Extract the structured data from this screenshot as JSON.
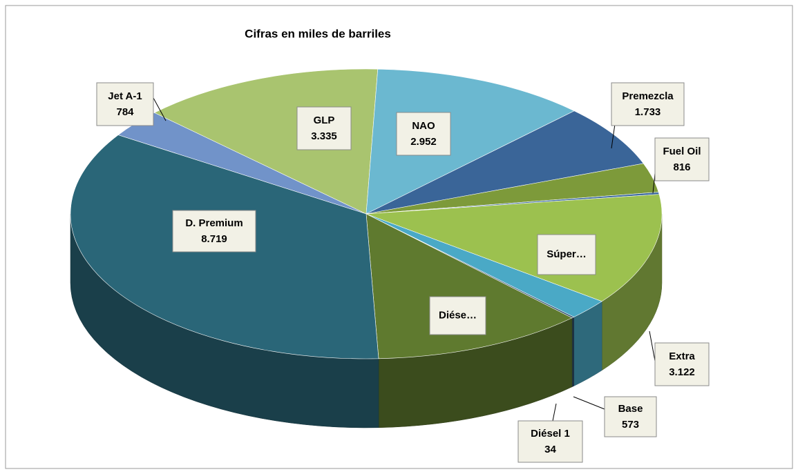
{
  "chart_data": {
    "type": "pie3d",
    "title": "Cifras en miles de barriles",
    "categories": [
      "Jet A-1",
      "GLP",
      "NAO",
      "Premezcla",
      "Fuel Oil",
      "Súper…",
      "Extra",
      "Base",
      "Diésel 1",
      "Diése…",
      "D. Premium"
    ],
    "values": [
      784,
      3335,
      2952,
      1733,
      816,
      60,
      3122,
      573,
      34,
      2900,
      8719
    ],
    "value_labels": [
      "784",
      "3.335",
      "2.952",
      "1.733",
      "816",
      null,
      "3.122",
      "573",
      "34",
      null,
      "8.719"
    ],
    "colors": [
      "#7193c9",
      "#a9c46f",
      "#6bb8d0",
      "#3a6598",
      "#7d9a3a",
      "#3f6ca0",
      "#9cc14f",
      "#4aa9c6",
      "#2f4f6f",
      "#5f7a2f",
      "#2a6678"
    ]
  }
}
